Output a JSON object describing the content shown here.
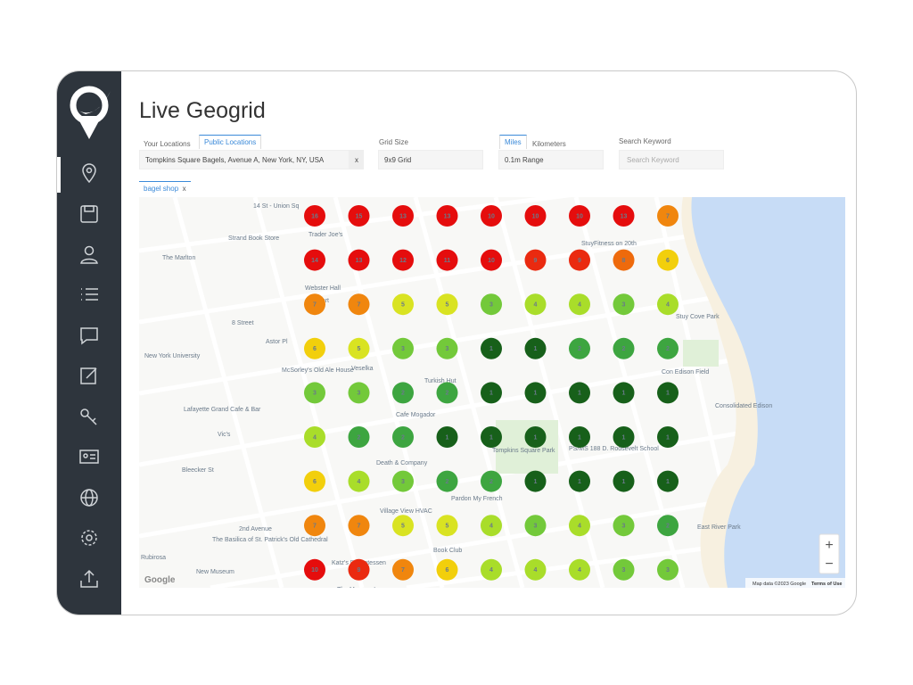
{
  "header": {
    "title": "Live Geogrid"
  },
  "location": {
    "tabs": [
      "Your Locations",
      "Public Locations"
    ],
    "value": "Tompkins Square Bagels, Avenue A, New York, NY, USA",
    "clear": "x"
  },
  "grid_size": {
    "label": "Grid Size",
    "value": "9x9 Grid"
  },
  "range": {
    "tabs": [
      "Miles",
      "Kilometers"
    ],
    "value": "0.1m Range"
  },
  "keyword": {
    "label": "Search Keyword",
    "placeholder": "Search Keyword",
    "tab": "bagel shop",
    "close": "x"
  },
  "map": {
    "labels": [
      "14 St - Union Sq",
      "Strand Book Store",
      "Trader Joe's",
      "The Marlton",
      "Webster Hall",
      "H Mart",
      "8 Street",
      "Astor Pl",
      "New York University",
      "Veselka",
      "McSorley's Old Ale House",
      "Turkish Hut",
      "Cafe Mogador",
      "Lafayette Grand Cafe & Bar",
      "Vic's",
      "Tompkins Square Park",
      "PS/MS 188 D. Roosevelt School",
      "Death & Company",
      "Pardon My French",
      "Village View HVAC",
      "Bleecker St",
      "2nd Avenue",
      "The Basilica of St. Patrick's Old Cathedral",
      "Book Club",
      "Katz's Delicatessen",
      "New Museum",
      "Con Edison Field",
      "Consolidated Edison",
      "East River Park",
      "StuyFitness on 20th",
      "Stuy Cove Park",
      "Rubirosa",
      "The Mercury Lounge"
    ],
    "attribution": "Map data ©2023 Google",
    "terms": "Terms of Use",
    "zoom_in": "+",
    "zoom_out": "−",
    "brand": "Google"
  },
  "geogrid": {
    "rows": [
      [
        16,
        15,
        13,
        13,
        10,
        10,
        10,
        13,
        7
      ],
      [
        14,
        13,
        12,
        11,
        10,
        9,
        9,
        8,
        6
      ],
      [
        7,
        7,
        5,
        5,
        3,
        4,
        4,
        3,
        4
      ],
      [
        6,
        5,
        3,
        3,
        1,
        1,
        2,
        2,
        2
      ],
      [
        3,
        3,
        2,
        2,
        1,
        1,
        1,
        1,
        1
      ],
      [
        4,
        2,
        2,
        1,
        1,
        1,
        1,
        1,
        1
      ],
      [
        6,
        4,
        3,
        2,
        2,
        1,
        1,
        1,
        1
      ],
      [
        7,
        7,
        5,
        5,
        4,
        3,
        4,
        3,
        2
      ],
      [
        10,
        9,
        7,
        6,
        4,
        4,
        4,
        3,
        3
      ]
    ],
    "rank_colors": [
      "#17601a",
      "#3da540",
      "#73c93a",
      "#a9dd2a",
      "#d9e322",
      "#f2cf0c",
      "#f0860e",
      "#ee6a0c",
      "#ea2a10",
      "#e50d0d",
      "#e50d0d",
      "#e50d0d",
      "#e50d0d",
      "#e50d0d",
      "#e50d0d",
      "#e50d0d"
    ]
  }
}
